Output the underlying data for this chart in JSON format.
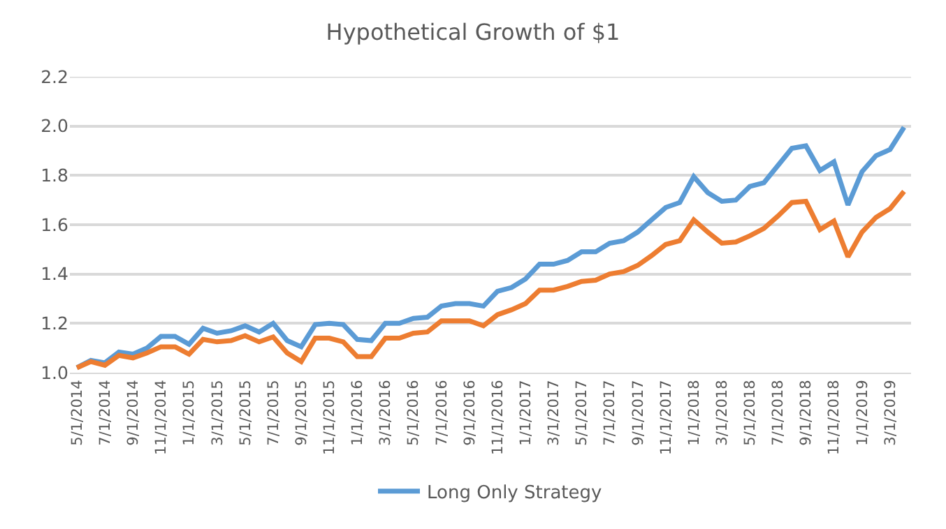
{
  "chart_data": {
    "type": "line",
    "title": "Hypothetical Growth of $1",
    "categories": [
      "5/1/2014",
      null,
      "7/1/2014",
      null,
      "9/1/2014",
      null,
      "11/1/2014",
      null,
      "1/1/2015",
      null,
      "3/1/2015",
      null,
      "5/1/2015",
      null,
      "7/1/2015",
      null,
      "9/1/2015",
      null,
      "11/1/2015",
      null,
      "1/1/2016",
      null,
      "3/1/2016",
      null,
      "5/1/2016",
      null,
      "7/1/2016",
      null,
      "9/1/2016",
      null,
      "11/1/2016",
      null,
      "1/1/2017",
      null,
      "3/1/2017",
      null,
      "5/1/2017",
      null,
      "7/1/2017",
      null,
      "9/1/2017",
      null,
      "11/1/2017",
      null,
      "1/1/2018",
      null,
      "3/1/2018",
      null,
      "5/1/2018",
      null,
      "7/1/2018",
      null,
      "9/1/2018",
      null,
      "11/1/2018",
      null,
      "1/1/2019",
      null,
      "3/1/2019",
      null
    ],
    "series": [
      {
        "name": "Long Only Strategy",
        "color": "#5b9bd5",
        "values": [
          1.02,
          1.05,
          1.04,
          1.084,
          1.075,
          1.1,
          1.147,
          1.147,
          1.115,
          1.18,
          1.16,
          1.17,
          1.19,
          1.165,
          1.2,
          1.13,
          1.105,
          1.195,
          1.2,
          1.195,
          1.135,
          1.13,
          1.2,
          1.2,
          1.22,
          1.225,
          1.27,
          1.28,
          1.28,
          1.27,
          1.33,
          1.345,
          1.38,
          1.44,
          1.44,
          1.455,
          1.49,
          1.49,
          1.525,
          1.535,
          1.57,
          1.62,
          1.67,
          1.69,
          1.795,
          1.73,
          1.695,
          1.7,
          1.755,
          1.77,
          1.84,
          1.91,
          1.92,
          1.82,
          1.855,
          1.68,
          1.815,
          1.88,
          1.905,
          1.995
        ]
      },
      {
        "color": "#ed7d31",
        "values": [
          1.02,
          1.045,
          1.03,
          1.07,
          1.06,
          1.08,
          1.105,
          1.105,
          1.075,
          1.135,
          1.125,
          1.13,
          1.15,
          1.125,
          1.145,
          1.08,
          1.045,
          1.14,
          1.14,
          1.125,
          1.065,
          1.065,
          1.14,
          1.14,
          1.16,
          1.165,
          1.21,
          1.21,
          1.21,
          1.19,
          1.235,
          1.255,
          1.28,
          1.335,
          1.335,
          1.35,
          1.37,
          1.375,
          1.4,
          1.41,
          1.435,
          1.475,
          1.52,
          1.535,
          1.62,
          1.57,
          1.525,
          1.53,
          1.555,
          1.585,
          1.635,
          1.69,
          1.695,
          1.58,
          1.615,
          1.47,
          1.57,
          1.63,
          1.665,
          1.735
        ]
      }
    ],
    "ylim": [
      1.0,
      2.2
    ],
    "yticks": [
      {
        "value": 1.0,
        "label": "1.0"
      },
      1.2,
      1.4,
      1.6,
      1.8,
      {
        "value": 2.0,
        "label": "2.0"
      },
      2.2
    ],
    "grid": "y",
    "legend": "bottom",
    "marker": "none",
    "line_style": "solid"
  }
}
